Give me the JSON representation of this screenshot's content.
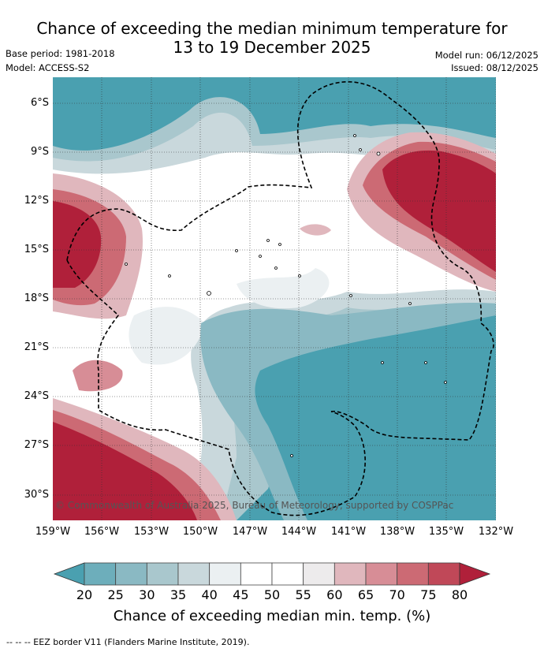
{
  "title": "Chance of exceeding the median minimum temperature for\n13 to 19 December 2025",
  "base_period": "Base period: 1981-2018",
  "model": "Model: ACCESS-S2",
  "model_run": "Model run: 06/12/2025",
  "issued": "Issued: 08/12/2025",
  "copyright": "© Commonwealth of Australia 2025, Bureau of Meteorology, supported by COSPPac",
  "lat_labels": [
    "6°S",
    "9°S",
    "12°S",
    "15°S",
    "18°S",
    "21°S",
    "24°S",
    "27°S",
    "30°S"
  ],
  "lon_labels": [
    "159°W",
    "156°W",
    "153°W",
    "150°W",
    "147°W",
    "144°W",
    "141°W",
    "138°W",
    "135°W",
    "132°W"
  ],
  "colorbar": {
    "ticks": [
      "20",
      "25",
      "30",
      "35",
      "40",
      "45",
      "50",
      "55",
      "60",
      "65",
      "70",
      "75",
      "80"
    ],
    "colors": [
      "#4aa0b0",
      "#6daebb",
      "#8ab9c3",
      "#a9c7cd",
      "#c9d8dc",
      "#ebf0f2",
      "#ffffff",
      "#ffffff",
      "#edebec",
      "#e0b7bd",
      "#d78d96",
      "#cc6a74",
      "#c04858",
      "#b0203a"
    ],
    "label": "Chance of exceeding median min. temp. (%)"
  },
  "eez_note": "--  --  -- EEZ border V11 (Flanders Marine Institute, 2019)."
}
